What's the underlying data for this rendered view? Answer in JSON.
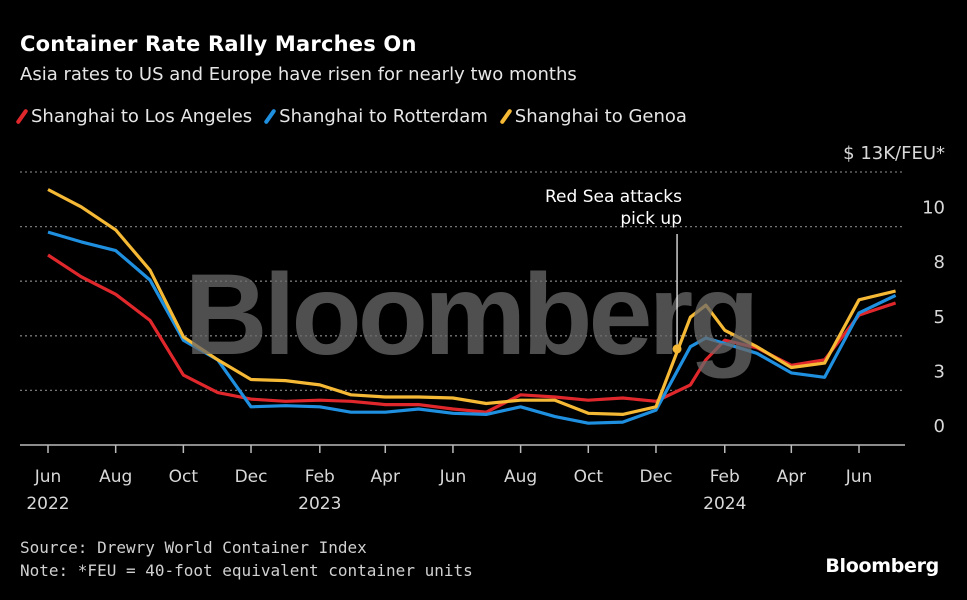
{
  "chart_data": {
    "type": "line",
    "title": "Container Rate Rally Marches On",
    "subtitle": "Asia rates to US and Europe have risen for nearly two months",
    "ylabel": "$ 13K/FEU*",
    "ylim": [
      0,
      12.5
    ],
    "y_ticks": [
      {
        "value": 0,
        "label": "0"
      },
      {
        "value": 2.5,
        "label": "3"
      },
      {
        "value": 5,
        "label": "5"
      },
      {
        "value": 7.5,
        "label": "8"
      },
      {
        "value": 10,
        "label": "10"
      },
      {
        "value": 12.5,
        "label": "$ 13K/FEU*"
      }
    ],
    "x_ticks": [
      {
        "date": "2022-06-01",
        "label": "Jun",
        "year": "2022"
      },
      {
        "date": "2022-08-01",
        "label": "Aug",
        "year": ""
      },
      {
        "date": "2022-10-01",
        "label": "Oct",
        "year": ""
      },
      {
        "date": "2022-12-01",
        "label": "Dec",
        "year": ""
      },
      {
        "date": "2023-02-01",
        "label": "Feb",
        "year": "2023"
      },
      {
        "date": "2023-04-01",
        "label": "Apr",
        "year": ""
      },
      {
        "date": "2023-06-01",
        "label": "Jun",
        "year": ""
      },
      {
        "date": "2023-08-01",
        "label": "Aug",
        "year": ""
      },
      {
        "date": "2023-10-01",
        "label": "Oct",
        "year": ""
      },
      {
        "date": "2023-12-01",
        "label": "Dec",
        "year": ""
      },
      {
        "date": "2024-02-01",
        "label": "Feb",
        "year": "2024"
      },
      {
        "date": "2024-04-01",
        "label": "Apr",
        "year": ""
      },
      {
        "date": "2024-06-01",
        "label": "Jun",
        "year": ""
      }
    ],
    "x": [
      "2022-06-01",
      "2022-07-01",
      "2022-08-01",
      "2022-09-01",
      "2022-10-01",
      "2022-11-01",
      "2022-12-01",
      "2023-01-01",
      "2023-02-01",
      "2023-03-01",
      "2023-04-01",
      "2023-05-01",
      "2023-06-01",
      "2023-07-01",
      "2023-08-01",
      "2023-09-01",
      "2023-10-01",
      "2023-11-01",
      "2023-12-01",
      "2024-01-01",
      "2024-01-15",
      "2024-02-01",
      "2024-03-01",
      "2024-04-01",
      "2024-05-01",
      "2024-06-01",
      "2024-07-04"
    ],
    "series": [
      {
        "name": "Shanghai to Los Angeles",
        "color": "#e0282c",
        "values": [
          8.7,
          7.7,
          6.9,
          5.7,
          3.2,
          2.4,
          2.1,
          2.0,
          2.05,
          2.0,
          1.85,
          1.85,
          1.65,
          1.5,
          2.3,
          2.2,
          2.05,
          2.15,
          2.0,
          2.75,
          3.9,
          4.8,
          4.45,
          3.65,
          3.9,
          5.95,
          6.5
        ]
      },
      {
        "name": "Shanghai to Rotterdam",
        "color": "#1f8fe0",
        "values": [
          9.75,
          9.3,
          8.9,
          7.55,
          4.8,
          3.9,
          1.75,
          1.8,
          1.75,
          1.5,
          1.5,
          1.65,
          1.45,
          1.4,
          1.75,
          1.3,
          1.0,
          1.05,
          1.6,
          4.5,
          4.9,
          4.65,
          4.2,
          3.3,
          3.1,
          6.05,
          6.85
        ]
      },
      {
        "name": "Shanghai to Genoa",
        "color": "#f5b935",
        "values": [
          11.7,
          10.9,
          9.85,
          8.0,
          4.95,
          3.9,
          3.0,
          2.95,
          2.75,
          2.3,
          2.2,
          2.2,
          2.15,
          1.9,
          2.05,
          2.05,
          1.45,
          1.4,
          1.75,
          5.85,
          6.4,
          5.25,
          4.5,
          3.55,
          3.75,
          6.65,
          7.05
        ]
      }
    ],
    "annotation": {
      "text_line1": "Red Sea attacks",
      "text_line2": "pick up",
      "date": "2023-12-20",
      "value": 4.4
    },
    "grid": true,
    "legend": "top-left"
  },
  "footer": {
    "source": "Source: Drewry World Container Index",
    "note": "Note: *FEU = 40-foot equivalent container units",
    "logo": "Bloomberg"
  },
  "watermark": "Bloomberg"
}
